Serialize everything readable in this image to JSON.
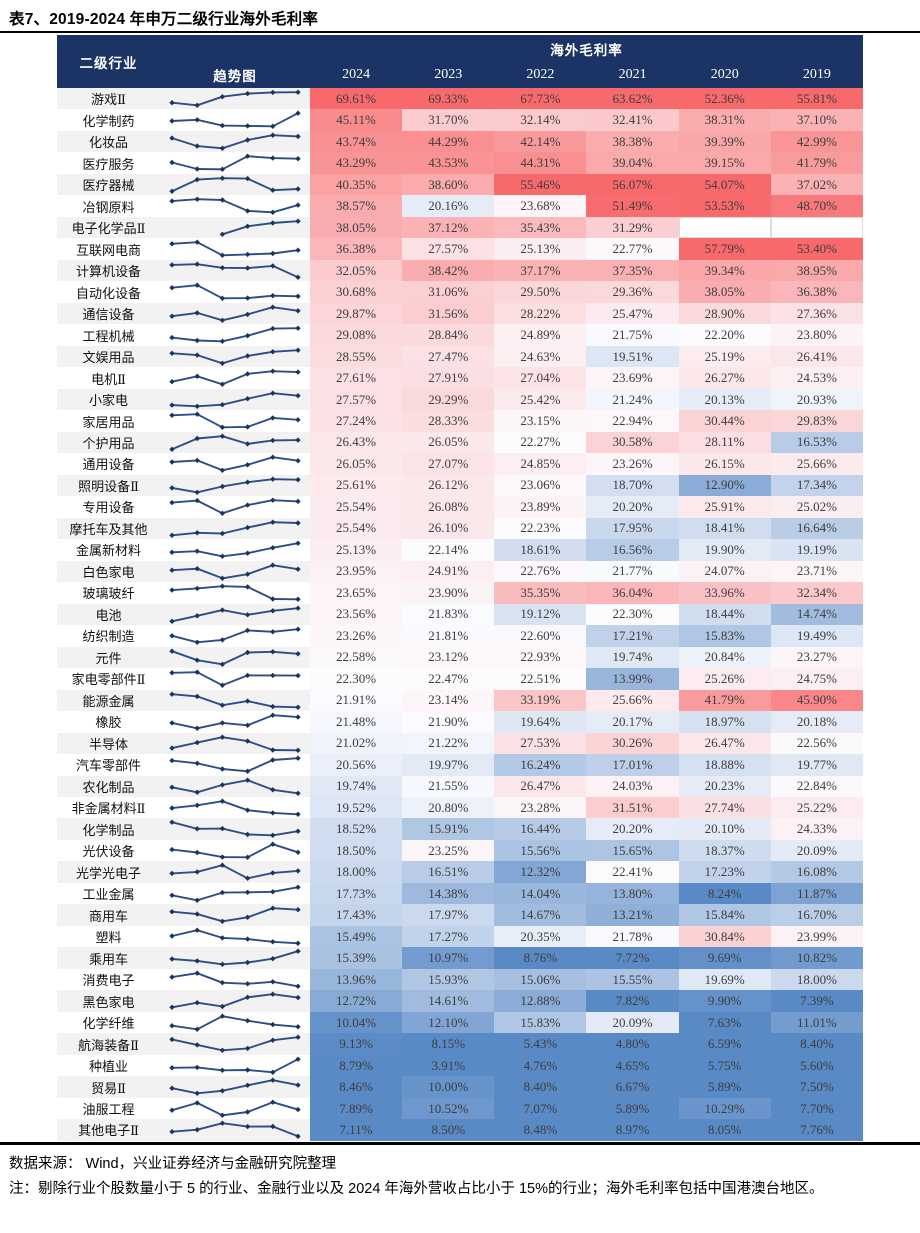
{
  "title": "表7、2019-2024 年申万二级行业海外毛利率",
  "table": {
    "industry_header": "二级行业",
    "trend_header": "趋势图",
    "group_header": "海外毛利率",
    "years": [
      "2024",
      "2023",
      "2022",
      "2021",
      "2020",
      "2019"
    ],
    "rows": [
      {
        "industry": "游戏Ⅱ",
        "values": [
          69.61,
          69.33,
          67.73,
          63.62,
          52.36,
          55.81
        ]
      },
      {
        "industry": "化学制药",
        "values": [
          45.11,
          31.7,
          32.14,
          32.41,
          38.31,
          37.1
        ]
      },
      {
        "industry": "化妆品",
        "values": [
          43.74,
          44.29,
          42.14,
          38.38,
          39.39,
          42.99
        ]
      },
      {
        "industry": "医疗服务",
        "values": [
          43.29,
          43.53,
          44.31,
          39.04,
          39.15,
          41.79
        ]
      },
      {
        "industry": "医疗器械",
        "values": [
          40.35,
          38.6,
          55.46,
          56.07,
          54.07,
          37.02
        ]
      },
      {
        "industry": "冶钢原料",
        "values": [
          38.57,
          20.16,
          23.68,
          51.49,
          53.53,
          48.7
        ]
      },
      {
        "industry": "电子化学品Ⅱ",
        "values": [
          38.05,
          37.12,
          35.43,
          31.29,
          null,
          null
        ]
      },
      {
        "industry": "互联网电商",
        "values": [
          36.38,
          27.57,
          25.13,
          22.77,
          57.79,
          53.4
        ]
      },
      {
        "industry": "计算机设备",
        "values": [
          32.05,
          38.42,
          37.17,
          37.35,
          39.34,
          38.95
        ]
      },
      {
        "industry": "自动化设备",
        "values": [
          30.68,
          31.06,
          29.5,
          29.36,
          38.05,
          36.38
        ]
      },
      {
        "industry": "通信设备",
        "values": [
          29.87,
          31.56,
          28.22,
          25.47,
          28.9,
          27.36
        ]
      },
      {
        "industry": "工程机械",
        "values": [
          29.08,
          28.84,
          24.89,
          21.75,
          22.2,
          23.8
        ]
      },
      {
        "industry": "文娱用品",
        "values": [
          28.55,
          27.47,
          24.63,
          19.51,
          25.19,
          26.41
        ]
      },
      {
        "industry": "电机Ⅱ",
        "values": [
          27.61,
          27.91,
          27.04,
          23.69,
          26.27,
          24.53
        ]
      },
      {
        "industry": "小家电",
        "values": [
          27.57,
          29.29,
          25.42,
          21.24,
          20.13,
          20.93
        ]
      },
      {
        "industry": "家居用品",
        "values": [
          27.24,
          28.33,
          23.15,
          22.94,
          30.44,
          29.83
        ]
      },
      {
        "industry": "个护用品",
        "values": [
          26.43,
          26.05,
          22.27,
          30.58,
          28.11,
          16.53
        ]
      },
      {
        "industry": "通用设备",
        "values": [
          26.05,
          27.07,
          24.85,
          23.26,
          26.15,
          25.66
        ]
      },
      {
        "industry": "照明设备Ⅱ",
        "values": [
          25.61,
          26.12,
          23.06,
          18.7,
          12.9,
          17.34
        ]
      },
      {
        "industry": "专用设备",
        "values": [
          25.54,
          26.08,
          23.89,
          20.2,
          25.91,
          25.02
        ]
      },
      {
        "industry": "摩托车及其他",
        "values": [
          25.54,
          26.1,
          22.23,
          17.95,
          18.41,
          16.64
        ]
      },
      {
        "industry": "金属新材料",
        "values": [
          25.13,
          22.14,
          18.61,
          16.56,
          19.9,
          19.19
        ]
      },
      {
        "industry": "白色家电",
        "values": [
          23.95,
          24.91,
          22.76,
          21.77,
          24.07,
          23.71
        ]
      },
      {
        "industry": "玻璃玻纤",
        "values": [
          23.65,
          23.9,
          35.35,
          36.04,
          33.96,
          32.34
        ]
      },
      {
        "industry": "电池",
        "values": [
          23.56,
          21.83,
          19.12,
          22.3,
          18.44,
          14.74
        ]
      },
      {
        "industry": "纺织制造",
        "values": [
          23.26,
          21.81,
          22.6,
          17.21,
          15.83,
          19.49
        ]
      },
      {
        "industry": "元件",
        "values": [
          22.58,
          23.12,
          22.93,
          19.74,
          20.84,
          23.27
        ]
      },
      {
        "industry": "家电零部件Ⅱ",
        "values": [
          22.3,
          22.47,
          22.51,
          13.99,
          25.26,
          24.75
        ]
      },
      {
        "industry": "能源金属",
        "values": [
          21.91,
          23.14,
          33.19,
          25.66,
          41.79,
          45.9
        ]
      },
      {
        "industry": "橡胶",
        "values": [
          21.48,
          21.9,
          19.64,
          20.17,
          18.97,
          20.18
        ]
      },
      {
        "industry": "半导体",
        "values": [
          21.02,
          21.22,
          27.53,
          30.26,
          26.47,
          22.56
        ]
      },
      {
        "industry": "汽车零部件",
        "values": [
          20.56,
          19.97,
          16.24,
          17.01,
          18.88,
          19.77
        ]
      },
      {
        "industry": "农化制品",
        "values": [
          19.74,
          21.55,
          26.47,
          24.03,
          20.23,
          22.84
        ]
      },
      {
        "industry": "非金属材料Ⅱ",
        "values": [
          19.52,
          20.8,
          23.28,
          31.51,
          27.74,
          25.22
        ]
      },
      {
        "industry": "化学制品",
        "values": [
          18.52,
          15.91,
          16.44,
          20.2,
          20.1,
          24.33
        ]
      },
      {
        "industry": "光伏设备",
        "values": [
          18.5,
          23.25,
          15.56,
          15.65,
          18.37,
          20.09
        ]
      },
      {
        "industry": "光学光电子",
        "values": [
          18.0,
          16.51,
          12.32,
          22.41,
          17.23,
          16.08
        ]
      },
      {
        "industry": "工业金属",
        "values": [
          17.73,
          14.38,
          14.04,
          13.8,
          8.24,
          11.87
        ]
      },
      {
        "industry": "商用车",
        "values": [
          17.43,
          17.97,
          14.67,
          13.21,
          15.84,
          16.7
        ]
      },
      {
        "industry": "塑料",
        "values": [
          15.49,
          17.27,
          20.35,
          21.78,
          30.84,
          23.99
        ]
      },
      {
        "industry": "乘用车",
        "values": [
          15.39,
          10.97,
          8.76,
          7.72,
          9.69,
          10.82
        ]
      },
      {
        "industry": "消费电子",
        "values": [
          13.96,
          15.93,
          15.06,
          15.55,
          19.69,
          18.0
        ]
      },
      {
        "industry": "黑色家电",
        "values": [
          12.72,
          14.61,
          12.88,
          7.82,
          9.9,
          7.39
        ]
      },
      {
        "industry": "化学纤维",
        "values": [
          10.04,
          12.1,
          15.83,
          20.09,
          7.63,
          11.01
        ]
      },
      {
        "industry": "航海装备Ⅱ",
        "values": [
          9.13,
          8.15,
          5.43,
          4.8,
          6.59,
          8.4
        ]
      },
      {
        "industry": "种植业",
        "values": [
          8.79,
          3.91,
          4.76,
          4.65,
          5.75,
          5.6
        ]
      },
      {
        "industry": "贸易Ⅱ",
        "values": [
          8.46,
          10.0,
          8.4,
          6.67,
          5.89,
          7.5
        ]
      },
      {
        "industry": "油服工程",
        "values": [
          7.89,
          10.52,
          7.07,
          5.89,
          10.29,
          7.7
        ]
      },
      {
        "industry": "其他电子Ⅱ",
        "values": [
          7.11,
          8.5,
          8.48,
          8.97,
          8.05,
          7.76
        ]
      }
    ]
  },
  "footer": {
    "source": "数据来源：  Wind，兴业证券经济与金融研究院整理",
    "note": "注：剔除行业个股数量小于 5 的行业、金融行业以及 2024 年海外营收占比小于 15%的行业；海外毛利率包括中国港澳台地区。"
  },
  "colors": {
    "header_bg": "#1C3365",
    "heat_high": "#F8696B",
    "heat_mid": "#FCFCFF",
    "heat_low": "#5A8AC6",
    "sparkline": "#2B4E87",
    "sparkline_marker": "#1B335F",
    "stripe": "#F2F2F2"
  }
}
